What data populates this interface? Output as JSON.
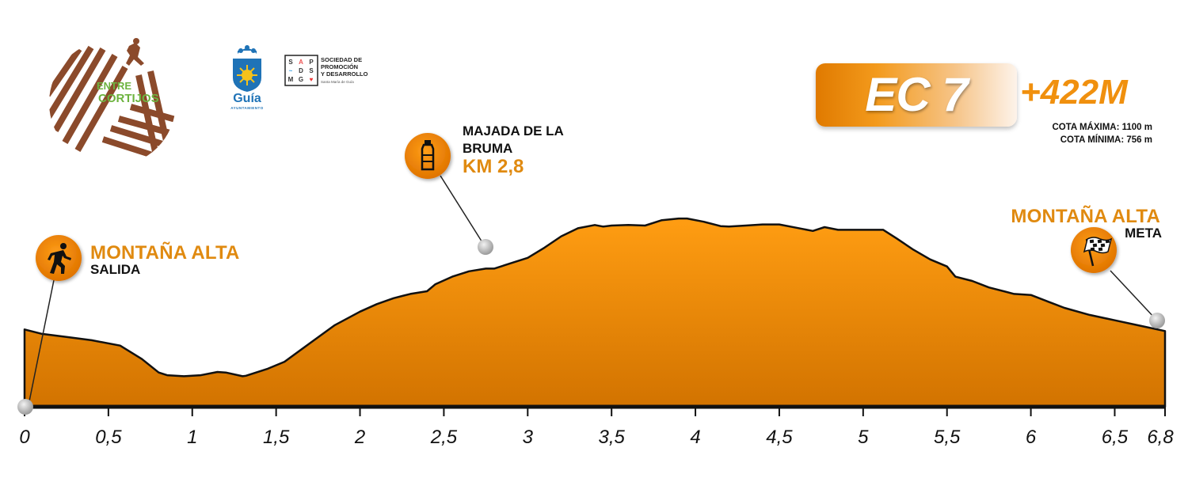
{
  "logos": {
    "entre_cortijos": {
      "word1": "ENTRE",
      "word2": "CORTIJOS"
    },
    "guia": {
      "name": "Guía",
      "subtitle": "AYUNTAMIENTO"
    },
    "sdmg": {
      "grid": [
        "S",
        "A",
        "P",
        "~",
        "D",
        "S",
        "M",
        "G",
        "♥"
      ],
      "lines": [
        "SOCIEDAD DE",
        "PROMOCIÓN",
        "Y DESARROLLO"
      ],
      "small": "Santa María de Guía"
    }
  },
  "stage_badge": {
    "label": "EC 7",
    "elevation_gain": "+422M"
  },
  "cota": {
    "max": "COTA MÁXIMA: 1100 m",
    "min": "COTA MÍNIMA: 756 m"
  },
  "waypoints": {
    "start": {
      "name": "MONTAÑA ALTA",
      "sub": "SALIDA",
      "icon": "hiker-icon",
      "km": 0
    },
    "aid": {
      "name_line1": "MAJADA DE LA",
      "name_line2": "BRUMA",
      "km_label": "KM 2,8",
      "icon": "water-bottle-icon",
      "km": 2.8
    },
    "finish": {
      "name": "MONTAÑA ALTA",
      "sub": "META",
      "icon": "checkered-flag-icon",
      "km": 6.8
    }
  },
  "colors": {
    "accent": "#f0900e",
    "profile_top": "#ff9a10",
    "profile_bottom": "#d07000",
    "text": "#111111"
  },
  "chart_data": {
    "type": "area",
    "title": "",
    "xlabel": "",
    "ylabel": "",
    "xlim": [
      0,
      6.8
    ],
    "ylim": [
      756,
      1100
    ],
    "x_ticks": [
      0,
      0.5,
      1,
      1.5,
      2,
      2.5,
      3,
      3.5,
      4,
      4.5,
      5,
      5.5,
      6,
      6.5,
      6.8
    ],
    "x_tick_labels": [
      "0",
      "0,5",
      "1",
      "1,5",
      "2",
      "2,5",
      "3",
      "3,5",
      "4",
      "4,5",
      "5",
      "5,5",
      "6",
      "6,5",
      "6,8"
    ],
    "grid": false,
    "series": [
      {
        "x": [
          0,
          0.1,
          0.25,
          0.4,
          0.57,
          0.7,
          0.8,
          0.85,
          0.95,
          1.05,
          1.15,
          1.2,
          1.3,
          1.32,
          1.45,
          1.55,
          1.7,
          1.85,
          2.0,
          2.1,
          2.2,
          2.3,
          2.4,
          2.45,
          2.55,
          2.65,
          2.75,
          2.8,
          2.9,
          3.0,
          3.1,
          3.2,
          3.3,
          3.4,
          3.45,
          3.5,
          3.6,
          3.7,
          3.8,
          3.9,
          3.95,
          4.05,
          4.15,
          4.2,
          4.3,
          4.4,
          4.5,
          4.6,
          4.7,
          4.77,
          4.85,
          5.0,
          5.12,
          5.2,
          5.3,
          5.4,
          5.5,
          5.55,
          5.65,
          5.75,
          5.9,
          6.0,
          6.1,
          6.2,
          6.35,
          6.5,
          6.65,
          6.8
        ],
        "y": [
          860,
          852,
          846,
          840,
          830,
          805,
          780,
          775,
          773,
          775,
          781,
          780,
          773,
          774,
          787,
          800,
          834,
          868,
          893,
          907,
          918,
          926,
          931,
          944,
          958,
          968,
          973,
          973,
          983,
          993,
          1012,
          1033,
          1048,
          1054,
          1051,
          1053,
          1054,
          1053,
          1063,
          1066,
          1066,
          1060,
          1052,
          1051,
          1053,
          1055,
          1055,
          1049,
          1043,
          1050,
          1045,
          1045,
          1045,
          1029,
          1008,
          990,
          977,
          958,
          950,
          938,
          926,
          924,
          912,
          900,
          887,
          877,
          867,
          857
        ]
      }
    ]
  }
}
